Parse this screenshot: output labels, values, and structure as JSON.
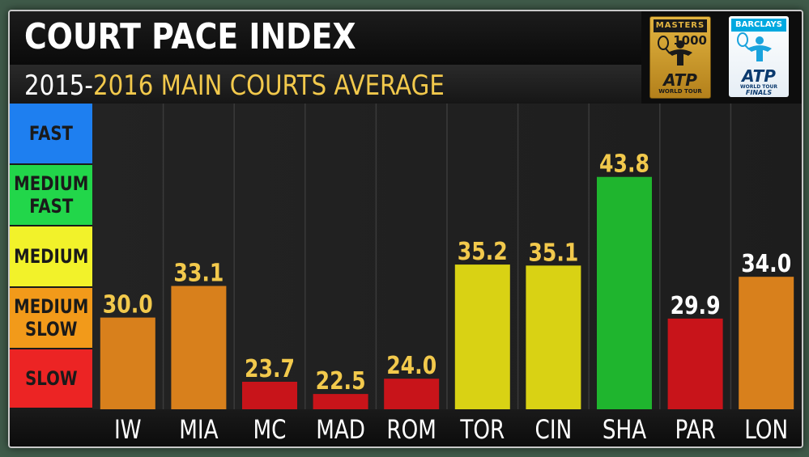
{
  "header": {
    "title": "COURT PACE INDEX",
    "subtitle_part1": "2015-",
    "subtitle_part2": "2016 MAIN COURTS AVERAGE"
  },
  "logos": {
    "masters": {
      "top": "MASTERS",
      "number": "1000",
      "brand": "ATP",
      "tour": "WORLD TOUR"
    },
    "finals": {
      "top": "BARCLAYS",
      "brand": "ATP",
      "tour": "WORLD TOUR",
      "event": "FINALS"
    }
  },
  "legend": [
    {
      "label": "FAST",
      "color": "#1e7ff0"
    },
    {
      "label": "MEDIUM FAST",
      "color": "#22d64a"
    },
    {
      "label": "MEDIUM",
      "color": "#f2f22a"
    },
    {
      "label": "MEDIUM SLOW",
      "color": "#f29a1a"
    },
    {
      "label": "SLOW",
      "color": "#ec2424"
    }
  ],
  "chart_data": {
    "type": "bar",
    "title": "COURT PACE INDEX",
    "subtitle": "2015-2016 MAIN COURTS AVERAGE",
    "categories": [
      "IW",
      "MIA",
      "MC",
      "MAD",
      "ROM",
      "TOR",
      "CIN",
      "SHA",
      "PAR",
      "LON"
    ],
    "values": [
      30.0,
      33.1,
      23.7,
      22.5,
      24.0,
      35.2,
      35.1,
      43.8,
      29.9,
      34.0
    ],
    "value_labels": [
      "30.0",
      "33.1",
      "23.7",
      "22.5",
      "24.0",
      "35.2",
      "35.1",
      "43.8",
      "29.9",
      "34.0"
    ],
    "bar_colors": [
      "#d8801c",
      "#d8801c",
      "#c8141a",
      "#c8141a",
      "#c8141a",
      "#d9d214",
      "#d9d214",
      "#1fb52e",
      "#c8141a",
      "#d8801c"
    ],
    "label_colors": [
      "#f2c94c",
      "#f2c94c",
      "#f2c94c",
      "#f2c94c",
      "#f2c94c",
      "#f2c94c",
      "#f2c94c",
      "#f2c94c",
      "#ffffff",
      "#ffffff"
    ],
    "ylim": [
      21,
      51
    ],
    "grid": true
  }
}
